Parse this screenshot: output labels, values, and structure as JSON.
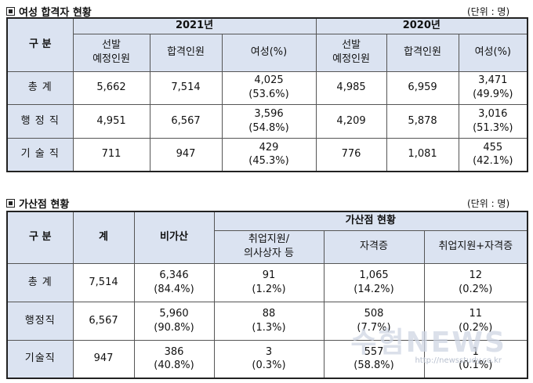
{
  "section1": {
    "title": "여성 합격자 현황",
    "unit": "(단위 : 명)",
    "header": {
      "label": "구  분",
      "year2021": "2021년",
      "year2020": "2020년",
      "col_planned": "선발\n예정인원",
      "col_passed": "합격인원",
      "col_female": "여성(%)"
    },
    "rows": [
      {
        "label": "총   계",
        "p21": "5,662",
        "a21": "7,514",
        "f21": "4,025",
        "r21": "(53.6%)",
        "p20": "4,985",
        "a20": "6,959",
        "f20": "3,471",
        "r20": "(49.9%)"
      },
      {
        "label": "행 정 직",
        "p21": "4,951",
        "a21": "6,567",
        "f21": "3,596",
        "r21": "(54.8%)",
        "p20": "4,209",
        "a20": "5,878",
        "f20": "3,016",
        "r20": "(51.3%)"
      },
      {
        "label": "기 술 직",
        "p21": "711",
        "a21": "947",
        "f21": "429",
        "r21": "(45.3%)",
        "p20": "776",
        "a20": "1,081",
        "f20": "455",
        "r20": "(42.1%)"
      }
    ]
  },
  "section2": {
    "title": "가산점 현황",
    "unit": "(단위 : 명)",
    "header": {
      "label": "구  분",
      "total": "계",
      "none": "비가산",
      "group": "가산점 현황",
      "c1": "취업지원/\n의사상자 등",
      "c2": "자격증",
      "c3": "취업지원+자격증"
    },
    "rows": [
      {
        "label": "총  계",
        "total": "7,514",
        "n": "6,346",
        "np": "(84.4%)",
        "c1": "91",
        "c1p": "(1.2%)",
        "c2": "1,065",
        "c2p": "(14.2%)",
        "c3": "12",
        "c3p": "(0.2%)"
      },
      {
        "label": "행정직",
        "total": "6,567",
        "n": "5,960",
        "np": "(90.8%)",
        "c1": "88",
        "c1p": "(1.3%)",
        "c2": "508",
        "c2p": "(7.7%)",
        "c3": "11",
        "c3p": "(0.2%)"
      },
      {
        "label": "기술직",
        "total": "947",
        "n": "386",
        "np": "(40.8%)",
        "c1": "3",
        "c1p": "(0.3%)",
        "c2": "557",
        "c2p": "(58.8%)",
        "c3": "1",
        "c3p": "(0.1%)"
      }
    ]
  },
  "watermark": {
    "text": "수험NEWS",
    "url": "http://newsstudy.co.kr"
  }
}
